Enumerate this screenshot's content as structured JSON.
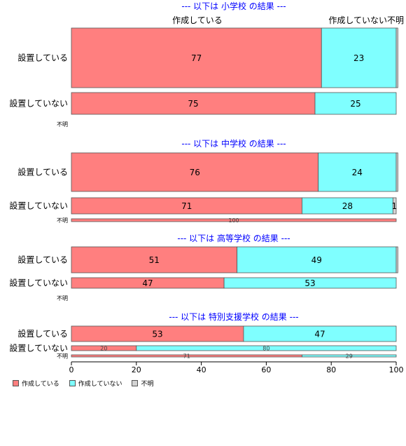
{
  "colors": {
    "yes": "#ff7f7f",
    "no": "#7fffff",
    "unknown": "#d3d3d3",
    "title": "#0000ff",
    "border": "#555555"
  },
  "column_labels": {
    "yes": "作成している",
    "no": "作成していない不明"
  },
  "chart_data": {
    "type": "bar",
    "orientation": "horizontal",
    "stacked": true,
    "xlim": [
      0,
      100
    ],
    "xticks": [
      0,
      20,
      40,
      60,
      80,
      100
    ],
    "legend": {
      "placement": "bottom-left",
      "entries": [
        "作成している",
        "作成していない",
        "不明"
      ]
    },
    "panels": [
      {
        "title": "--- 以下は 小学校 の結果 ---",
        "rows": [
          {
            "label": "設置している",
            "values": [
              77,
              23,
              0.5
            ]
          },
          {
            "label": "設置していない",
            "values": [
              75,
              25,
              0
            ]
          },
          {
            "label": "不明",
            "values": [
              0,
              0,
              0
            ]
          }
        ]
      },
      {
        "title": "--- 以下は 中学校 の結果 ---",
        "rows": [
          {
            "label": "設置している",
            "values": [
              76,
              24,
              0.5
            ]
          },
          {
            "label": "設置していない",
            "values": [
              71,
              28,
              1
            ]
          },
          {
            "label": "不明",
            "values": [
              100,
              0,
              0
            ]
          }
        ]
      },
      {
        "title": "--- 以下は 高等学校 の結果 ---",
        "rows": [
          {
            "label": "設置している",
            "values": [
              51,
              49,
              0.5
            ]
          },
          {
            "label": "設置していない",
            "values": [
              47,
              53,
              0
            ]
          },
          {
            "label": "不明",
            "values": [
              0,
              0,
              0
            ]
          }
        ]
      },
      {
        "title": "--- 以下は 特別支援学校 の結果 ---",
        "rows": [
          {
            "label": "設置している",
            "values": [
              53,
              47,
              0
            ]
          },
          {
            "label": "設置していない",
            "values": [
              20,
              80,
              0
            ]
          },
          {
            "label": "不明",
            "values": [
              71,
              29,
              0
            ]
          }
        ]
      }
    ]
  }
}
